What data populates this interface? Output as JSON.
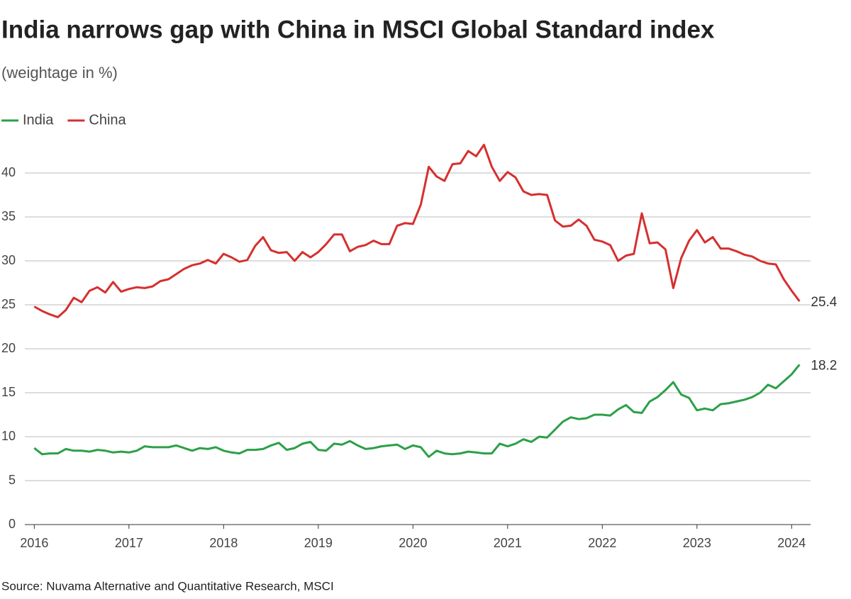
{
  "chart_data": {
    "type": "line",
    "title": "India narrows gap with China in MSCI Global Standard index",
    "subtitle": "(weightage in %)",
    "source": "Source: Nuvama Alternative and Quantitative Research, MSCI",
    "x": [
      2016,
      2016.083,
      2016.167,
      2016.25,
      2016.333,
      2016.417,
      2016.5,
      2016.583,
      2016.667,
      2016.75,
      2016.833,
      2016.917,
      2017,
      2017.083,
      2017.167,
      2017.25,
      2017.333,
      2017.417,
      2017.5,
      2017.583,
      2017.667,
      2017.75,
      2017.833,
      2017.917,
      2018,
      2018.083,
      2018.167,
      2018.25,
      2018.333,
      2018.417,
      2018.5,
      2018.583,
      2018.667,
      2018.75,
      2018.833,
      2018.917,
      2019,
      2019.083,
      2019.167,
      2019.25,
      2019.333,
      2019.417,
      2019.5,
      2019.583,
      2019.667,
      2019.75,
      2019.833,
      2019.917,
      2020,
      2020.083,
      2020.167,
      2020.25,
      2020.333,
      2020.417,
      2020.5,
      2020.583,
      2020.667,
      2020.75,
      2020.833,
      2020.917,
      2021,
      2021.083,
      2021.167,
      2021.25,
      2021.333,
      2021.417,
      2021.5,
      2021.583,
      2021.667,
      2021.75,
      2021.833,
      2021.917,
      2022,
      2022.083,
      2022.167,
      2022.25,
      2022.333,
      2022.417,
      2022.5,
      2022.583,
      2022.667,
      2022.75,
      2022.833,
      2022.917,
      2023,
      2023.083,
      2023.167,
      2023.25,
      2023.333,
      2023.417,
      2023.5,
      2023.583,
      2023.667,
      2023.75,
      2023.833,
      2023.917,
      2024,
      2024.083
    ],
    "series": [
      {
        "name": "India",
        "color": "#2ca048",
        "values": [
          8.7,
          8.0,
          8.1,
          8.1,
          8.6,
          8.4,
          8.4,
          8.3,
          8.5,
          8.4,
          8.2,
          8.3,
          8.2,
          8.4,
          8.9,
          8.8,
          8.8,
          8.8,
          9.0,
          8.7,
          8.4,
          8.7,
          8.6,
          8.8,
          8.4,
          8.2,
          8.1,
          8.5,
          8.5,
          8.6,
          9.0,
          9.3,
          8.5,
          8.7,
          9.2,
          9.4,
          8.5,
          8.4,
          9.2,
          9.1,
          9.5,
          9.0,
          8.6,
          8.7,
          8.9,
          9.0,
          9.1,
          8.6,
          9.0,
          8.8,
          7.7,
          8.4,
          8.1,
          8.0,
          8.1,
          8.3,
          8.2,
          8.1,
          8.1,
          9.2,
          8.9,
          9.2,
          9.7,
          9.4,
          10.0,
          9.9,
          10.8,
          11.7,
          12.2,
          12.0,
          12.1,
          12.5,
          12.5,
          12.4,
          13.1,
          13.6,
          12.8,
          12.7,
          14.0,
          14.5,
          15.3,
          16.2,
          14.8,
          14.4,
          13.0,
          13.2,
          13.0,
          13.7,
          13.8,
          14.0,
          14.2,
          14.5,
          15.0,
          15.9,
          15.5,
          16.3,
          17.1,
          18.2
        ]
      },
      {
        "name": "China",
        "color": "#d62f2f",
        "values": [
          24.8,
          24.3,
          23.9,
          23.6,
          24.4,
          25.8,
          25.3,
          26.6,
          27.0,
          26.4,
          27.6,
          26.5,
          26.8,
          27.0,
          26.9,
          27.1,
          27.7,
          27.9,
          28.5,
          29.1,
          29.5,
          29.7,
          30.1,
          29.7,
          30.8,
          30.4,
          29.9,
          30.1,
          31.7,
          32.7,
          31.2,
          30.9,
          31.0,
          30.0,
          31.0,
          30.4,
          31.0,
          31.9,
          33.0,
          33.0,
          31.1,
          31.6,
          31.8,
          32.3,
          31.9,
          31.9,
          34.0,
          34.3,
          34.2,
          36.4,
          40.7,
          39.6,
          39.1,
          41.0,
          41.1,
          42.5,
          41.9,
          43.2,
          40.7,
          39.1,
          40.1,
          39.5,
          37.9,
          37.5,
          37.6,
          37.5,
          34.6,
          33.9,
          34.0,
          34.7,
          34.0,
          32.4,
          32.2,
          31.8,
          30.0,
          30.6,
          30.8,
          35.4,
          32.0,
          32.1,
          31.3,
          26.9,
          30.3,
          32.3,
          33.5,
          32.1,
          32.7,
          31.4,
          31.4,
          31.1,
          30.7,
          30.5,
          30.0,
          29.7,
          29.6,
          27.9,
          26.6,
          25.4
        ]
      }
    ],
    "xlim": [
      2015.9,
      2024.2
    ],
    "xticks": [
      2016,
      2017,
      2018,
      2019,
      2020,
      2021,
      2022,
      2023,
      2024
    ],
    "ylim": [
      0,
      45
    ],
    "yticks": [
      0,
      5,
      10,
      15,
      20,
      25,
      30,
      35,
      40
    ],
    "grid": true
  }
}
